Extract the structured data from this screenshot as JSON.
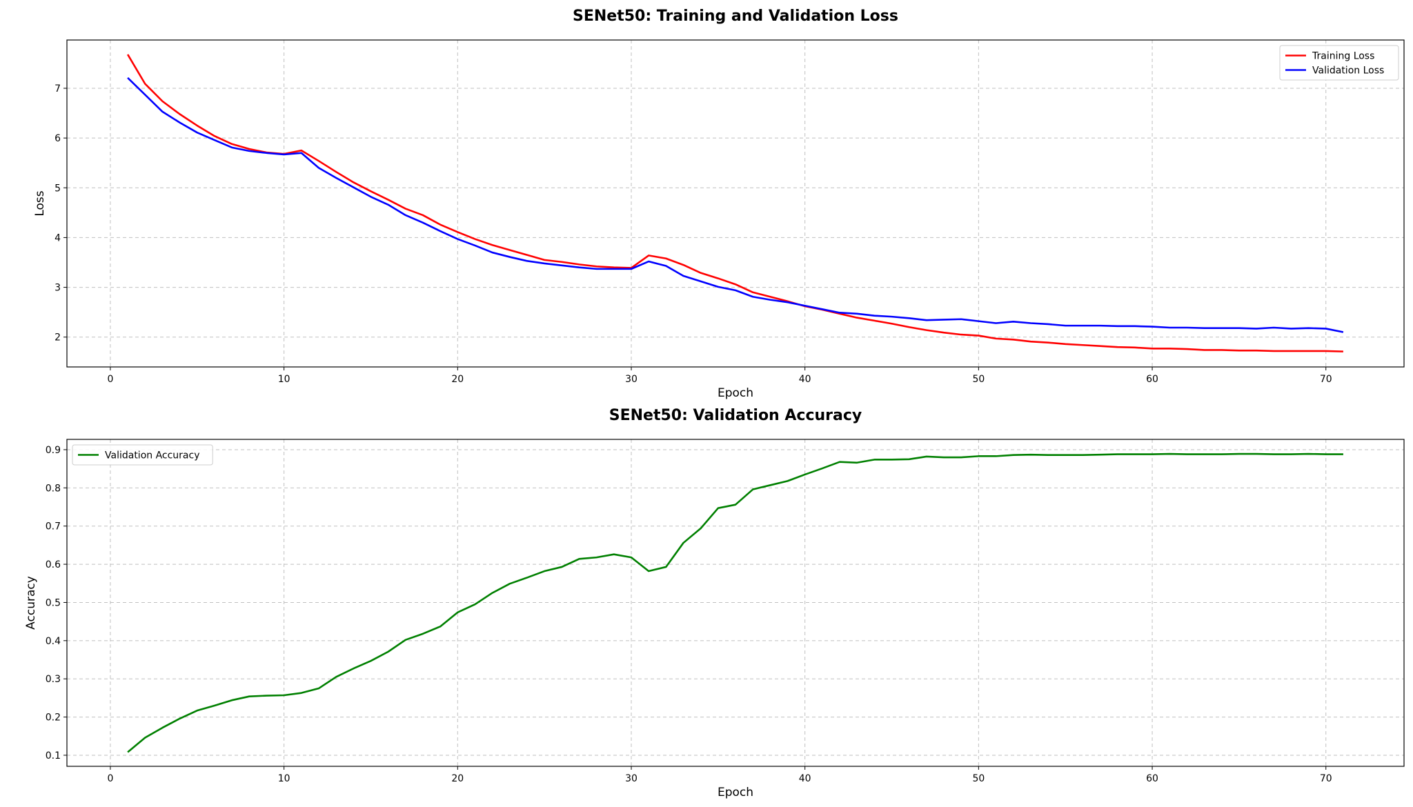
{
  "chart_data": [
    {
      "type": "line",
      "title": "SENet50: Training and Validation Loss",
      "xlabel": "Epoch",
      "ylabel": "Loss",
      "xlim": [
        -2.5,
        74.5
      ],
      "ylim": [
        1.4,
        7.97
      ],
      "xticks": [
        0,
        10,
        20,
        30,
        40,
        50,
        60,
        70
      ],
      "yticks": [
        2,
        3,
        4,
        5,
        6,
        7
      ],
      "grid": true,
      "legend": "top-right",
      "x": [
        1,
        2,
        3,
        4,
        5,
        6,
        7,
        8,
        9,
        10,
        11,
        12,
        13,
        14,
        15,
        16,
        17,
        18,
        19,
        20,
        21,
        22,
        23,
        24,
        25,
        26,
        27,
        28,
        29,
        30,
        31,
        32,
        33,
        34,
        35,
        36,
        37,
        38,
        39,
        40,
        41,
        42,
        43,
        44,
        45,
        46,
        47,
        48,
        49,
        50,
        51,
        52,
        53,
        54,
        55,
        56,
        57,
        58,
        59,
        60,
        61,
        62,
        63,
        64,
        65,
        66,
        67,
        68,
        69,
        70,
        71
      ],
      "series": [
        {
          "name": "Training Loss",
          "color": "#ff0000",
          "values": [
            7.68,
            7.09,
            6.74,
            6.48,
            6.25,
            6.04,
            5.88,
            5.78,
            5.71,
            5.68,
            5.75,
            5.54,
            5.32,
            5.11,
            4.93,
            4.76,
            4.58,
            4.45,
            4.26,
            4.11,
            3.97,
            3.85,
            3.75,
            3.65,
            3.55,
            3.51,
            3.46,
            3.42,
            3.4,
            3.39,
            3.64,
            3.58,
            3.45,
            3.29,
            3.18,
            3.06,
            2.9,
            2.81,
            2.72,
            2.62,
            2.55,
            2.47,
            2.39,
            2.33,
            2.27,
            2.2,
            2.14,
            2.09,
            2.05,
            2.03,
            1.97,
            1.95,
            1.91,
            1.89,
            1.86,
            1.84,
            1.82,
            1.8,
            1.79,
            1.77,
            1.77,
            1.76,
            1.74,
            1.74,
            1.73,
            1.73,
            1.72,
            1.72,
            1.72,
            1.72,
            1.71
          ]
        },
        {
          "name": "Validation Loss",
          "color": "#0000ff",
          "values": [
            7.21,
            6.87,
            6.53,
            6.31,
            6.11,
            5.96,
            5.81,
            5.74,
            5.7,
            5.67,
            5.7,
            5.4,
            5.2,
            5.01,
            4.82,
            4.66,
            4.45,
            4.3,
            4.13,
            3.97,
            3.84,
            3.7,
            3.61,
            3.53,
            3.48,
            3.44,
            3.4,
            3.37,
            3.37,
            3.37,
            3.52,
            3.43,
            3.23,
            3.12,
            3.01,
            2.94,
            2.81,
            2.75,
            2.7,
            2.63,
            2.56,
            2.49,
            2.47,
            2.43,
            2.41,
            2.38,
            2.34,
            2.35,
            2.36,
            2.32,
            2.28,
            2.31,
            2.28,
            2.26,
            2.23,
            2.23,
            2.23,
            2.22,
            2.22,
            2.21,
            2.19,
            2.19,
            2.18,
            2.18,
            2.18,
            2.17,
            2.19,
            2.17,
            2.18,
            2.17,
            2.1
          ]
        }
      ]
    },
    {
      "type": "line",
      "title": "SENet50: Validation Accuracy",
      "xlabel": "Epoch",
      "ylabel": "Accuracy",
      "xlim": [
        -2.5,
        74.5
      ],
      "ylim": [
        0.071,
        0.927
      ],
      "xticks": [
        0,
        10,
        20,
        30,
        40,
        50,
        60,
        70
      ],
      "yticks": [
        0.1,
        0.2,
        0.3,
        0.4,
        0.5,
        0.6,
        0.7,
        0.8,
        0.9
      ],
      "grid": true,
      "legend": "top-left",
      "x": [
        1,
        2,
        3,
        4,
        5,
        6,
        7,
        8,
        9,
        10,
        11,
        12,
        13,
        14,
        15,
        16,
        17,
        18,
        19,
        20,
        21,
        22,
        23,
        24,
        25,
        26,
        27,
        28,
        29,
        30,
        31,
        32,
        33,
        34,
        35,
        36,
        37,
        38,
        39,
        40,
        41,
        42,
        43,
        44,
        45,
        46,
        47,
        48,
        49,
        50,
        51,
        52,
        53,
        54,
        55,
        56,
        57,
        58,
        59,
        60,
        61,
        62,
        63,
        64,
        65,
        66,
        67,
        68,
        69,
        70,
        71
      ],
      "series": [
        {
          "name": "Validation Accuracy",
          "color": "#008000",
          "values": [
            0.108,
            0.146,
            0.172,
            0.196,
            0.217,
            0.23,
            0.244,
            0.254,
            0.256,
            0.257,
            0.263,
            0.275,
            0.305,
            0.327,
            0.347,
            0.371,
            0.402,
            0.418,
            0.437,
            0.474,
            0.495,
            0.525,
            0.549,
            0.565,
            0.582,
            0.593,
            0.614,
            0.618,
            0.626,
            0.618,
            0.582,
            0.593,
            0.656,
            0.694,
            0.747,
            0.756,
            0.796,
            0.807,
            0.818,
            0.835,
            0.851,
            0.868,
            0.866,
            0.874,
            0.874,
            0.875,
            0.882,
            0.88,
            0.88,
            0.883,
            0.883,
            0.886,
            0.887,
            0.886,
            0.886,
            0.886,
            0.887,
            0.888,
            0.888,
            0.888,
            0.889,
            0.888,
            0.888,
            0.888,
            0.889,
            0.889,
            0.888,
            0.888,
            0.889,
            0.888,
            0.888
          ]
        }
      ]
    }
  ]
}
